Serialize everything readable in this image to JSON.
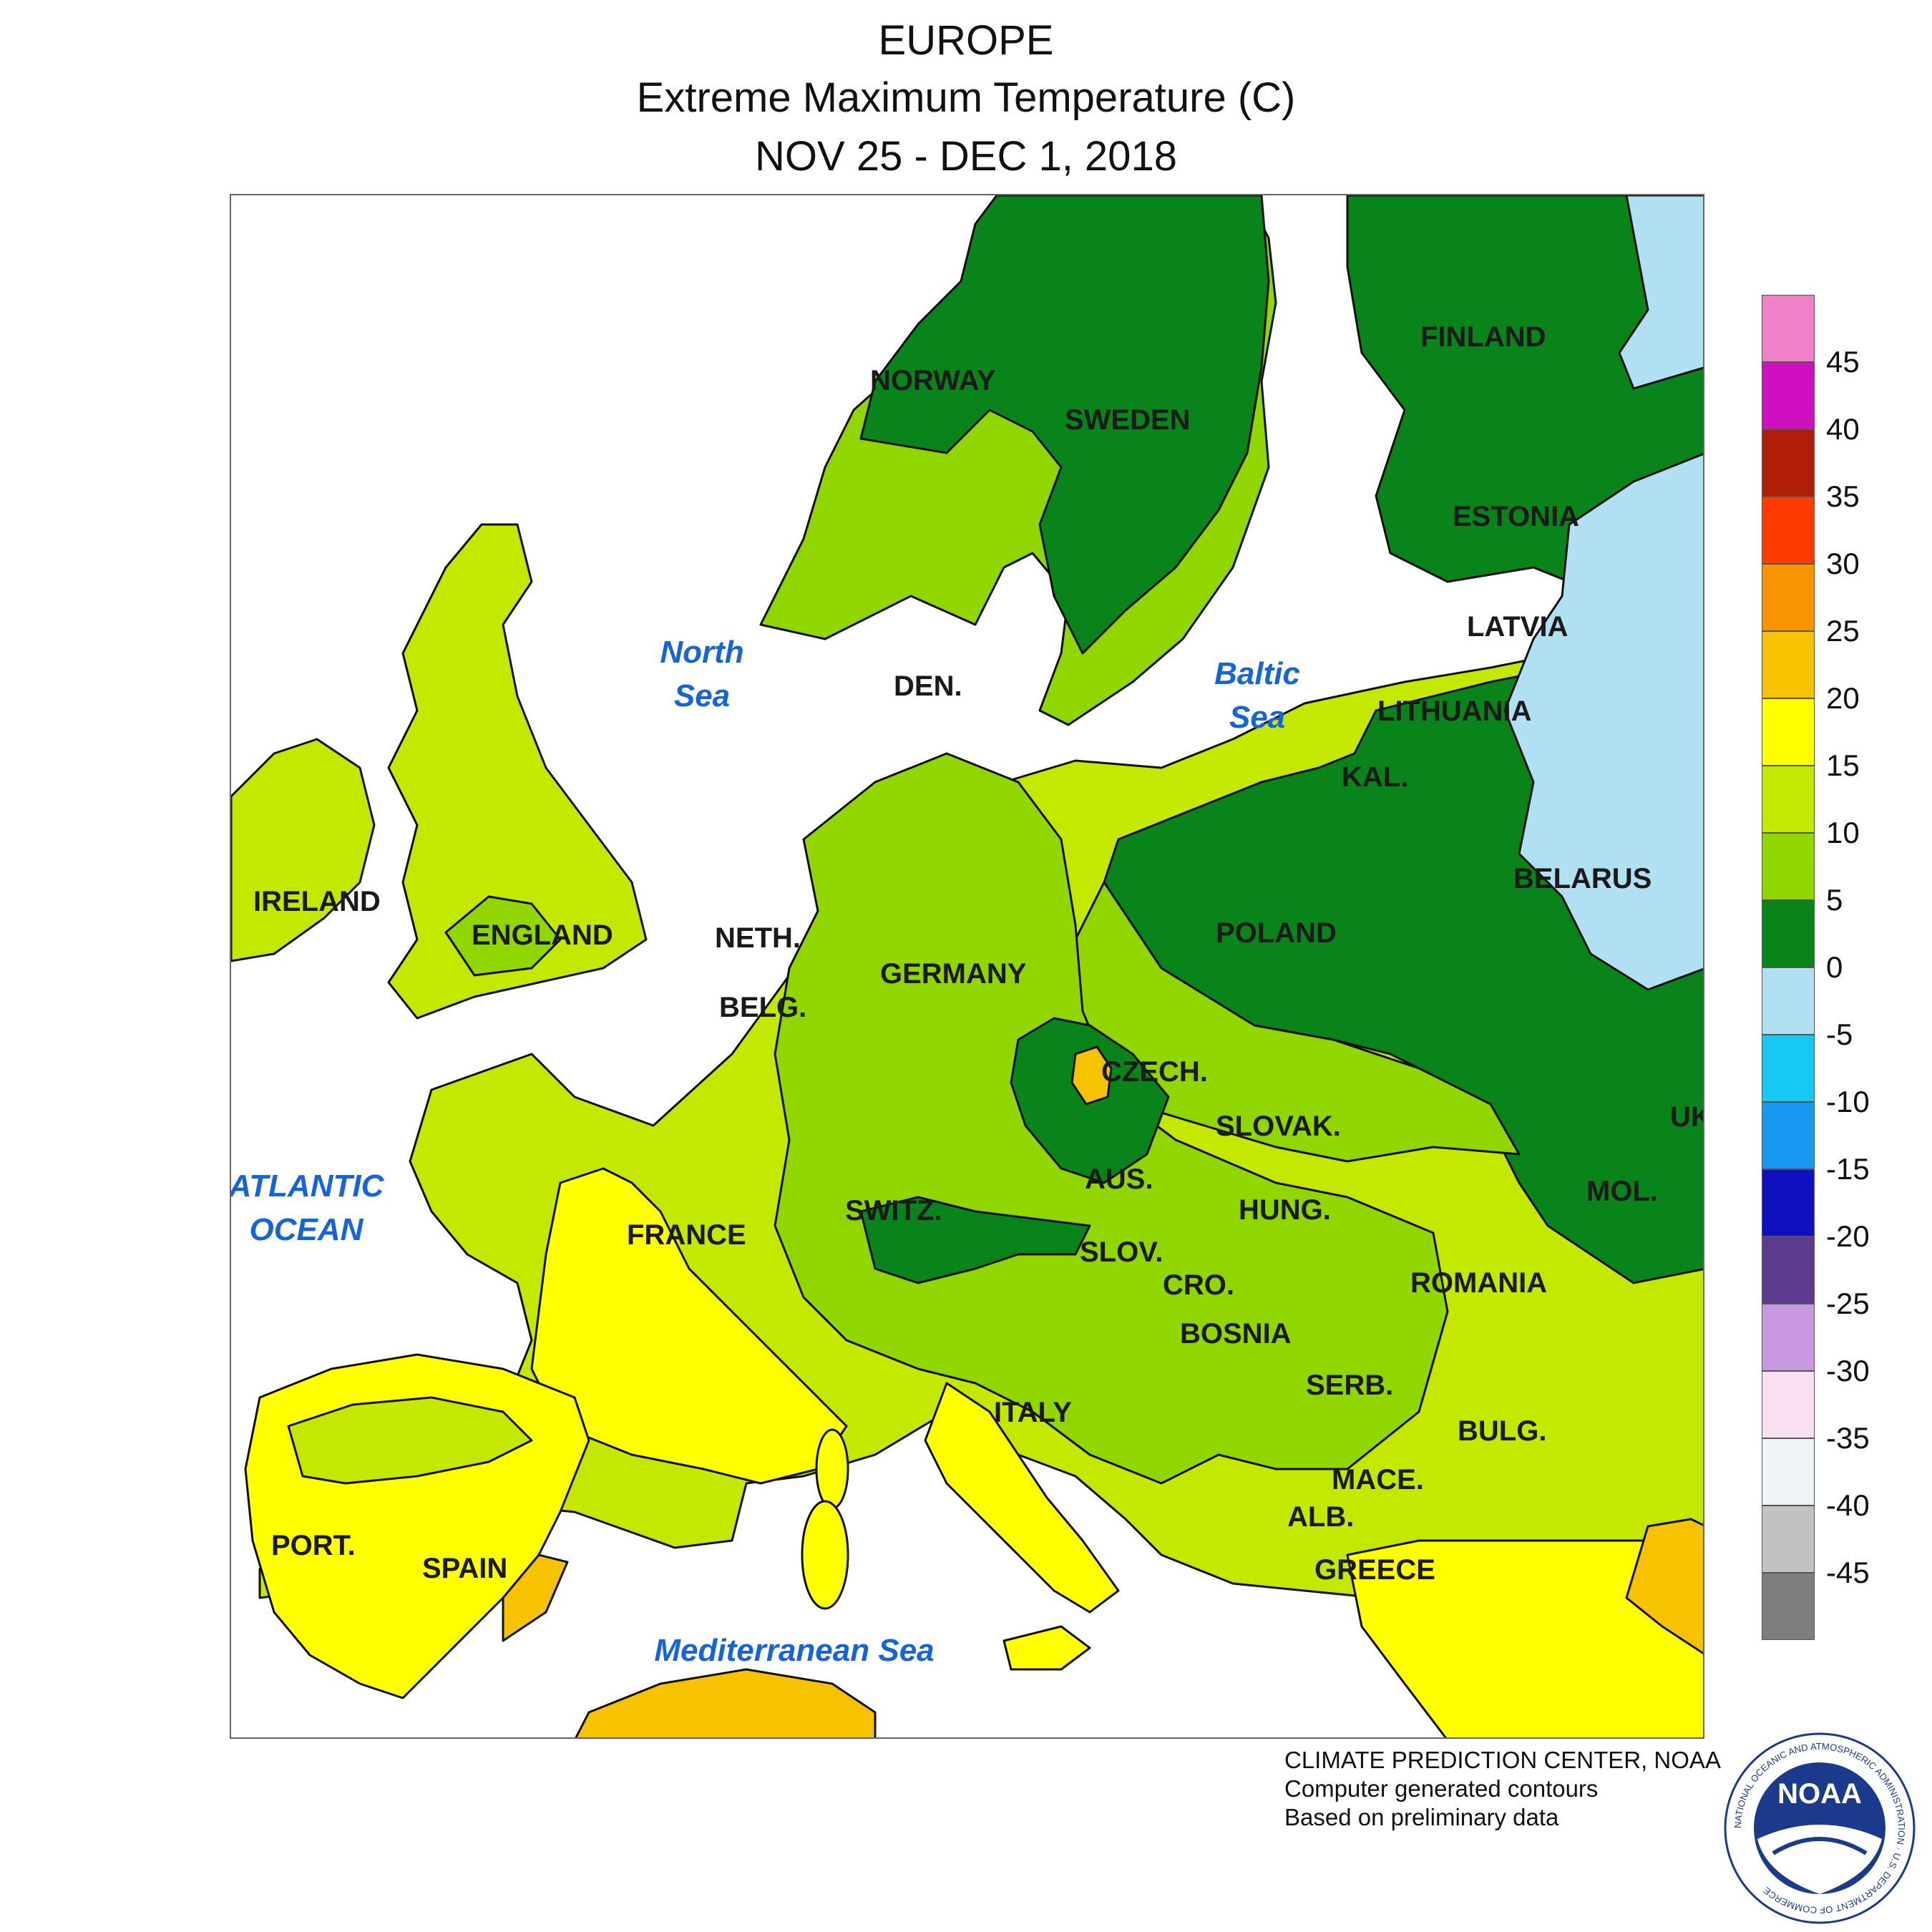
{
  "title": {
    "region": "EUROPE",
    "subtitle": "Extreme Maximum Temperature (C)",
    "dates": "NOV 25 - DEC 1, 2018"
  },
  "map": {
    "countries": [
      "NORWAY",
      "SWEDEN",
      "FINLAND",
      "ESTONIA",
      "LATVIA",
      "LITHUANIA",
      "KAL.",
      "BELARUS",
      "DEN.",
      "IRELAND",
      "ENGLAND",
      "NETH.",
      "BELG.",
      "GERMANY",
      "POLAND",
      "CZECH.",
      "SLOVAK.",
      "UK",
      "AUS.",
      "SWITZ.",
      "FRANCE",
      "HUNG.",
      "MOL.",
      "SLOV.",
      "CRO.",
      "ROMANIA",
      "BOSNIA",
      "SERB.",
      "ITALY",
      "BULG.",
      "MACE.",
      "ALB.",
      "GREECE",
      "PORT.",
      "SPAIN"
    ],
    "seas": [
      "North",
      "Sea",
      "Baltic",
      "Sea",
      "ATLANTIC",
      "OCEAN",
      "Mediterranean Sea"
    ]
  },
  "legend": {
    "labels": [
      "45",
      "40",
      "35",
      "30",
      "25",
      "20",
      "15",
      "10",
      "5",
      "0",
      "-5",
      "-10",
      "-15",
      "-20",
      "-25",
      "-30",
      "-35",
      "-40",
      "-45"
    ],
    "colors": [
      "#f080c8",
      "#d010c0",
      "#b01e08",
      "#ff3b00",
      "#f79400",
      "#f7c200",
      "#ffff00",
      "#c4e800",
      "#92d600",
      "#08841a",
      "#b0e0f2",
      "#18c8f4",
      "#1898f0",
      "#1010c0",
      "#5c3a8e",
      "#c898e0",
      "#f8e0f2",
      "#eef4f8",
      "#c2c2c2",
      "#7e7e7e"
    ]
  },
  "credits": {
    "line1": "CLIMATE PREDICTION CENTER, NOAA",
    "line2": "Computer generated contours",
    "line3": "Based on preliminary data"
  },
  "logo": {
    "text": "NOAA",
    "ring_text": "NATIONAL OCEANIC AND ATMOSPHERIC ADMINISTRATION · U.S. DEPARTMENT OF COMMERCE"
  }
}
